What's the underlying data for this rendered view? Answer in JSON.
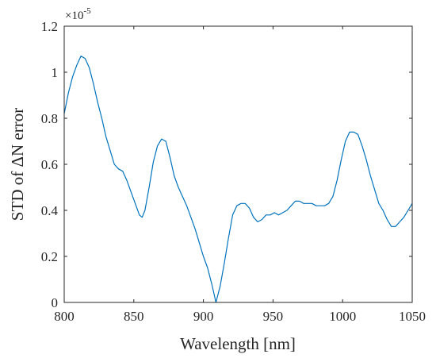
{
  "chart_data": {
    "type": "line",
    "title": "",
    "xlabel": "Wavelength [nm]",
    "ylabel": "STD of ΔN error",
    "xlim": [
      800,
      1050
    ],
    "ylim": [
      0,
      1.2
    ],
    "y_exponent_base": "×10",
    "y_exponent_power": "-5",
    "xticks": [
      "800",
      "850",
      "900",
      "950",
      "1000",
      "1050"
    ],
    "yticks": [
      "0",
      "0.2",
      "0.4",
      "0.6",
      "0.8",
      "1",
      "1.2"
    ],
    "grid": false,
    "box": true,
    "series": [
      {
        "color": "#0072BD",
        "x": [
          800,
          803,
          806,
          809,
          812,
          815,
          818,
          821,
          824,
          827,
          830,
          833,
          836,
          839,
          842,
          845,
          848,
          851,
          854,
          856,
          858,
          861,
          864,
          867,
          870,
          873,
          876,
          879,
          882,
          885,
          888,
          891,
          894,
          897,
          900,
          903,
          906,
          909,
          912,
          915,
          918,
          921,
          924,
          927,
          930,
          933,
          936,
          939,
          942,
          945,
          948,
          951,
          954,
          957,
          960,
          963,
          966,
          969,
          972,
          975,
          978,
          981,
          984,
          987,
          990,
          993,
          996,
          999,
          1002,
          1005,
          1008,
          1011,
          1014,
          1017,
          1020,
          1023,
          1026,
          1029,
          1032,
          1035,
          1038,
          1041,
          1044,
          1047,
          1050
        ],
        "values": [
          0.82,
          0.91,
          0.98,
          1.03,
          1.07,
          1.06,
          1.02,
          0.95,
          0.87,
          0.8,
          0.72,
          0.66,
          0.6,
          0.58,
          0.57,
          0.53,
          0.48,
          0.43,
          0.38,
          0.37,
          0.4,
          0.5,
          0.61,
          0.68,
          0.71,
          0.7,
          0.63,
          0.55,
          0.5,
          0.46,
          0.42,
          0.37,
          0.32,
          0.26,
          0.2,
          0.15,
          0.08,
          0.0,
          0.07,
          0.17,
          0.28,
          0.38,
          0.42,
          0.43,
          0.43,
          0.41,
          0.37,
          0.35,
          0.36,
          0.38,
          0.38,
          0.39,
          0.38,
          0.39,
          0.4,
          0.42,
          0.44,
          0.44,
          0.43,
          0.43,
          0.43,
          0.42,
          0.42,
          0.42,
          0.43,
          0.46,
          0.53,
          0.62,
          0.7,
          0.74,
          0.74,
          0.73,
          0.68,
          0.62,
          0.55,
          0.49,
          0.43,
          0.4,
          0.36,
          0.33,
          0.33,
          0.35,
          0.37,
          0.4,
          0.43
        ]
      }
    ]
  }
}
